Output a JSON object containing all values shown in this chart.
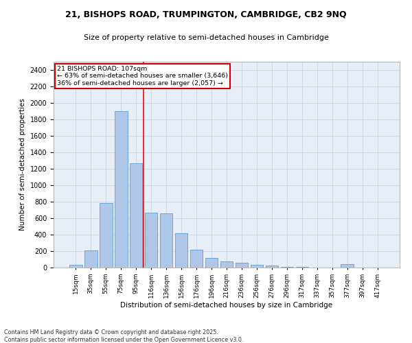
{
  "title_line1": "21, BISHOPS ROAD, TRUMPINGTON, CAMBRIDGE, CB2 9NQ",
  "title_line2": "Size of property relative to semi-detached houses in Cambridge",
  "xlabel": "Distribution of semi-detached houses by size in Cambridge",
  "ylabel": "Number of semi-detached properties",
  "footer_line1": "Contains HM Land Registry data © Crown copyright and database right 2025.",
  "footer_line2": "Contains public sector information licensed under the Open Government Licence v3.0.",
  "bar_labels": [
    "15sqm",
    "35sqm",
    "55sqm",
    "75sqm",
    "95sqm",
    "116sqm",
    "136sqm",
    "156sqm",
    "176sqm",
    "196sqm",
    "216sqm",
    "236sqm",
    "256sqm",
    "276sqm",
    "296sqm",
    "317sqm",
    "337sqm",
    "357sqm",
    "377sqm",
    "397sqm",
    "417sqm"
  ],
  "bar_values": [
    30,
    205,
    780,
    1900,
    1270,
    670,
    660,
    420,
    215,
    115,
    75,
    55,
    35,
    25,
    10,
    10,
    0,
    0,
    40,
    0,
    0
  ],
  "bar_color": "#aec6e8",
  "bar_edge_color": "#5a9fd4",
  "property_label": "21 BISHOPS ROAD: 107sqm",
  "pct_smaller": 63,
  "count_smaller": 3646,
  "pct_larger": 36,
  "count_larger": 2057,
  "vline_pos": 4.5,
  "ylim": [
    0,
    2500
  ],
  "yticks": [
    0,
    200,
    400,
    600,
    800,
    1000,
    1200,
    1400,
    1600,
    1800,
    2000,
    2200,
    2400
  ],
  "annotation_box_color": "#cc0000",
  "grid_color": "#d0d8e8",
  "background_color": "#e8eef8",
  "fig_width": 6.0,
  "fig_height": 5.0,
  "dpi": 100
}
